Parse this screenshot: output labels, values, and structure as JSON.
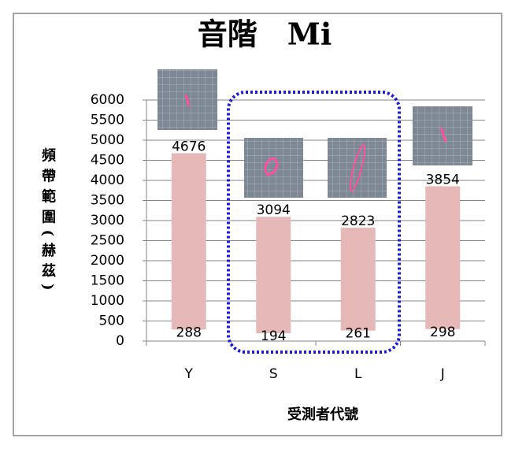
{
  "chart_data": {
    "type": "range-bar",
    "title": "音階　Mi",
    "x_label": "受測者代號",
    "y_label": "頻帶範圍(赫茲)",
    "categories": [
      "Y",
      "S",
      "L",
      "J"
    ],
    "low": [
      288,
      194,
      261,
      298
    ],
    "high": [
      4676,
      3094,
      2823,
      3854
    ],
    "color": "#e6b8b7",
    "ylim": [
      0,
      6000
    ],
    "yticks": [
      0,
      500,
      1000,
      1500,
      2000,
      2500,
      3000,
      3500,
      4000,
      4500,
      5000,
      5500,
      6000
    ],
    "grid": true
  }
}
